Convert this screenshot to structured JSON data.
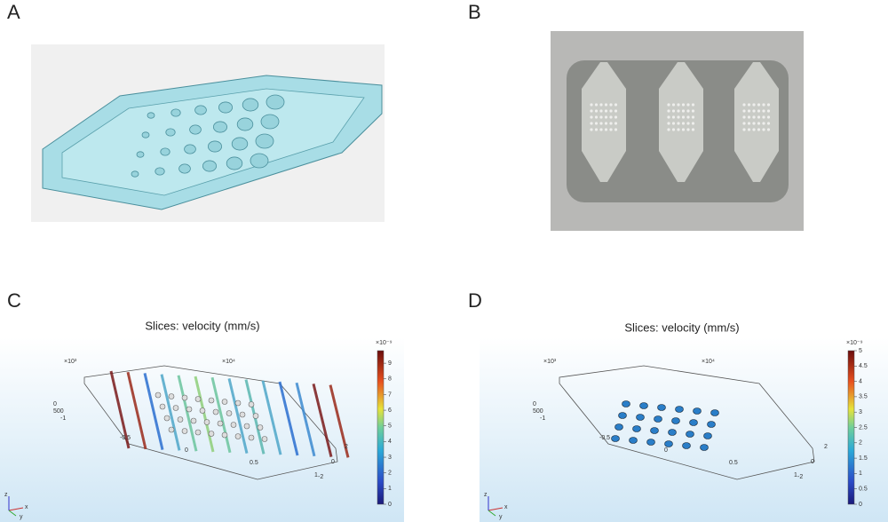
{
  "panels": [
    {
      "label": "A"
    },
    {
      "label": "B"
    },
    {
      "label": "C",
      "title": "Slices: velocity (mm/s)",
      "colorbar": {
        "exponent": "×10⁻⁹",
        "max": 9.8,
        "ticks": [
          0,
          1,
          2,
          3,
          4,
          5,
          6,
          7,
          8,
          9
        ]
      },
      "axes": {
        "x_scale": "×10⁴",
        "y_scale": "×10³",
        "x_ticks": [
          "-0.5",
          "0",
          "0.5",
          "1"
        ],
        "y_ticks": [
          "2",
          "0",
          "-2"
        ],
        "z_ticks": [
          "0",
          "500",
          "-1"
        ],
        "triad": [
          "x",
          "y",
          "z"
        ]
      }
    },
    {
      "label": "D",
      "title": "Slices: velocity (mm/s)",
      "colorbar": {
        "exponent": "×10⁻⁹",
        "max": 5,
        "ticks": [
          0,
          0.5,
          1,
          1.5,
          2,
          2.5,
          3,
          3.5,
          4,
          4.5,
          5
        ]
      },
      "axes": {
        "x_scale": "×10⁴",
        "y_scale": "×10³",
        "x_ticks": [
          "-0.5",
          "0",
          "0.5",
          "1"
        ],
        "y_ticks": [
          "2",
          "0",
          "-2"
        ],
        "z_ticks": [
          "0",
          "500",
          "-1"
        ],
        "triad": [
          "x",
          "y",
          "z"
        ]
      }
    }
  ]
}
